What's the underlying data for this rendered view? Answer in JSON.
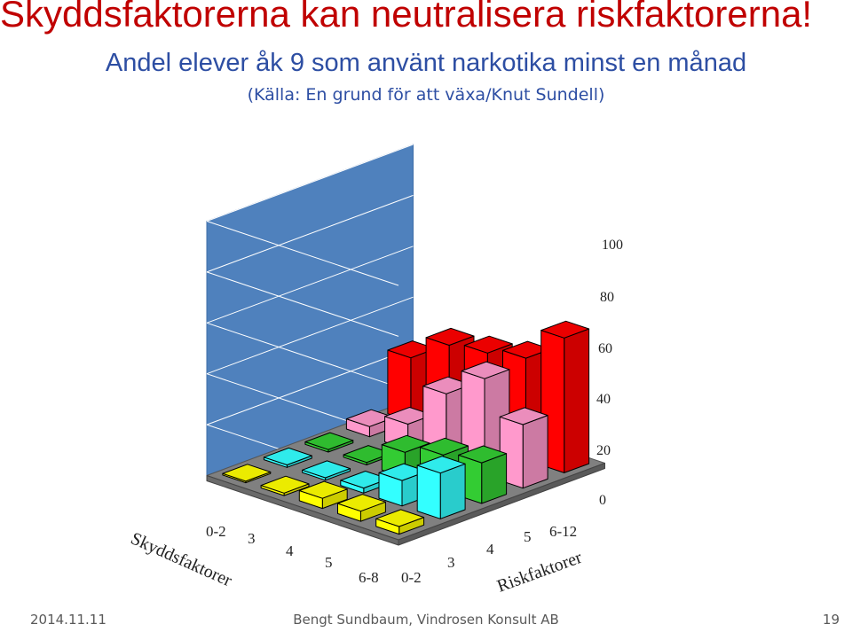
{
  "slide": {
    "title": "Skyddsfaktorerna kan neutralisera riskfaktorerna!",
    "subtitle": "Andel elever åk 9 som använt narkotika minst en månad",
    "source": "(Källa: En grund för att växa/Knut Sundell)"
  },
  "footer": {
    "date": "2014.11.11",
    "center": "Bengt Sundbaum, Vindrosen Konsult AB",
    "page": "19"
  },
  "chart_data": {
    "type": "bar3d",
    "z_axis": {
      "ticks": [
        "0",
        "20",
        "40",
        "60",
        "80",
        "100"
      ],
      "range": [
        0,
        100
      ]
    },
    "x_axis": {
      "label": "Riskfaktorer",
      "ticks": [
        "0-2",
        "3",
        "4",
        "5",
        "6-12"
      ]
    },
    "y_axis": {
      "label": "Skyddsfaktorer",
      "ticks": [
        "0-2",
        "3",
        "4",
        "5",
        "6-8"
      ]
    },
    "colors": [
      "#ffff00",
      "#33ffff",
      "#33cc33",
      "#ff99cc",
      "#ff0000"
    ],
    "grid": true,
    "values": [
      [
        3,
        4,
        4,
        1,
        0
      ],
      [
        18,
        10,
        2,
        1,
        1
      ],
      [
        16,
        14,
        10,
        1,
        1
      ],
      [
        25,
        38,
        27,
        10,
        4
      ],
      [
        53,
        40,
        37,
        35,
        25
      ]
    ]
  }
}
